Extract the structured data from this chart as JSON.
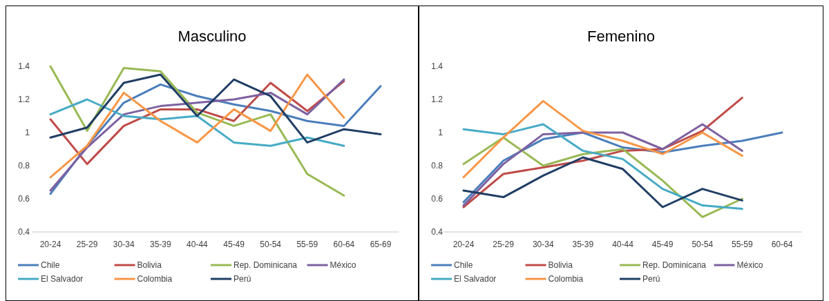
{
  "chart_data": [
    {
      "type": "line",
      "title": "Masculino",
      "categories": [
        "20-24",
        "25-29",
        "30-34",
        "35-39",
        "40-44",
        "45-49",
        "50-54",
        "55-59",
        "60-64",
        "65-69"
      ],
      "ylim": [
        0.4,
        1.4
      ],
      "yticks": [
        0.4,
        0.6,
        0.8,
        1,
        1.2,
        1.4
      ],
      "legend": "bottom",
      "series": [
        {
          "name": "Chile",
          "color": "#4a7ebb",
          "values": [
            0.63,
            0.92,
            1.18,
            1.29,
            1.22,
            1.17,
            1.13,
            1.07,
            1.04,
            1.28
          ]
        },
        {
          "name": "Bolivia",
          "color": "#be4b48",
          "values": [
            1.08,
            0.81,
            1.04,
            1.14,
            1.14,
            1.07,
            1.3,
            1.13,
            1.31,
            null
          ]
        },
        {
          "name": "Rep. Dominicana",
          "color": "#98b954",
          "values": [
            1.4,
            1.01,
            1.39,
            1.37,
            1.12,
            1.04,
            1.11,
            0.75,
            0.62,
            null
          ]
        },
        {
          "name": "México",
          "color": "#7d60a0",
          "values": [
            0.65,
            0.91,
            1.11,
            1.16,
            1.18,
            1.2,
            1.24,
            1.11,
            1.32,
            null
          ]
        },
        {
          "name": "El Salvador",
          "color": "#46aac5",
          "values": [
            1.11,
            1.2,
            1.1,
            1.08,
            1.1,
            0.94,
            0.92,
            0.97,
            0.92,
            null
          ]
        },
        {
          "name": "Colombia",
          "color": "#f79646",
          "values": [
            0.73,
            0.92,
            1.24,
            1.07,
            0.94,
            1.14,
            1.01,
            1.35,
            1.09,
            null
          ]
        },
        {
          "name": "Perú",
          "color": "#1f3d63",
          "values": [
            0.97,
            1.03,
            1.3,
            1.35,
            1.1,
            1.32,
            1.22,
            0.94,
            1.02,
            0.99
          ]
        }
      ]
    },
    {
      "type": "line",
      "title": "Femenino",
      "categories": [
        "20-24",
        "25-29",
        "30-34",
        "35-39",
        "40-44",
        "45-49",
        "50-54",
        "55-59",
        "60-64"
      ],
      "ylim": [
        0.4,
        1.4
      ],
      "yticks": [
        0.4,
        0.6,
        0.8,
        1,
        1.2,
        1.4
      ],
      "legend": "bottom",
      "series": [
        {
          "name": "Chile",
          "color": "#4a7ebb",
          "values": [
            0.58,
            0.83,
            0.96,
            1.0,
            0.91,
            0.88,
            0.92,
            0.95,
            1.0
          ]
        },
        {
          "name": "Bolivia",
          "color": "#be4b48",
          "values": [
            0.55,
            0.75,
            0.79,
            0.83,
            0.89,
            0.9,
            1.01,
            1.21,
            null
          ]
        },
        {
          "name": "Rep. Dominicana",
          "color": "#98b954",
          "values": [
            0.81,
            0.97,
            0.8,
            0.87,
            0.9,
            0.71,
            0.49,
            0.6,
            null
          ]
        },
        {
          "name": "México",
          "color": "#7d60a0",
          "values": [
            0.56,
            0.81,
            0.99,
            1.0,
            1.0,
            0.9,
            1.05,
            0.89,
            null
          ]
        },
        {
          "name": "El Salvador",
          "color": "#46aac5",
          "values": [
            1.02,
            0.99,
            1.05,
            0.89,
            0.84,
            0.66,
            0.56,
            0.54,
            null
          ]
        },
        {
          "name": "Colombia",
          "color": "#f79646",
          "values": [
            0.73,
            0.97,
            1.19,
            1.01,
            0.95,
            0.87,
            1.0,
            0.86,
            null
          ]
        },
        {
          "name": "Perú",
          "color": "#1f3d63",
          "values": [
            0.65,
            0.61,
            0.74,
            0.85,
            0.78,
            0.55,
            0.66,
            0.59,
            null
          ]
        }
      ]
    }
  ]
}
